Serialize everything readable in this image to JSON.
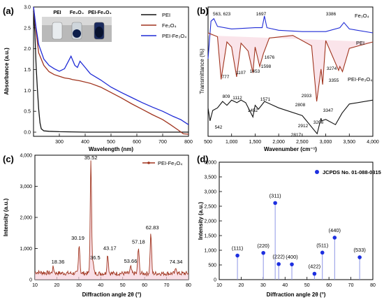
{
  "colors": {
    "pei": "#111111",
    "fe3o4": "#a0341e",
    "pei_fe3o4": "#1f2bd6",
    "fill_pink": "#f7d2dc",
    "stick": "#8e96e6",
    "marker": "#1d2fe0"
  },
  "chart_data": [
    {
      "panel": "(a)",
      "type": "line",
      "xlabel": "Wavelength (nm)",
      "ylabel": "Absorbance (a.u.)",
      "xlim": [
        200,
        800
      ],
      "ylim": [
        -0.1,
        3.0
      ],
      "xticks": [
        "300",
        "400",
        "500",
        "600",
        "700",
        "800"
      ],
      "yticks": [
        "0.0",
        "0.5",
        "1.0",
        "1.5",
        "2.0",
        "2.5",
        "3.0"
      ],
      "legend_position": "top-right",
      "inset_labels": [
        "PEI",
        "Fe₃O₄",
        "PEI-Fe₃O₄"
      ],
      "series": [
        {
          "name": "PEI",
          "color_key": "pei",
          "x": [
            200,
            205,
            210,
            215,
            220,
            225,
            230,
            240,
            260,
            300,
            400,
            600,
            800
          ],
          "y": [
            2.9,
            2.4,
            1.6,
            1.05,
            0.55,
            0.22,
            0.08,
            0.03,
            0.02,
            0.01,
            0.0,
            0.0,
            0.0
          ]
        },
        {
          "name": "Fe₃O₄",
          "color_key": "fe3o4",
          "x": [
            200,
            210,
            220,
            240,
            260,
            280,
            300,
            320,
            340,
            350,
            380,
            420,
            460,
            500,
            540,
            580,
            620,
            660,
            700,
            730,
            760,
            780,
            800
          ],
          "y": [
            3.0,
            2.4,
            1.9,
            1.6,
            1.45,
            1.38,
            1.34,
            1.3,
            1.28,
            1.26,
            1.23,
            1.17,
            1.08,
            0.95,
            0.82,
            0.68,
            0.55,
            0.42,
            0.3,
            0.18,
            0.05,
            -0.04,
            -0.05
          ]
        },
        {
          "name": "PEI-Fe₃O₄",
          "color_key": "pei_fe3o4",
          "x": [
            200,
            210,
            220,
            240,
            260,
            280,
            300,
            320,
            335,
            345,
            360,
            370,
            380,
            400,
            420,
            460,
            500,
            540,
            580,
            620,
            660,
            700,
            740,
            770,
            790,
            800
          ],
          "y": [
            3.0,
            2.5,
            2.1,
            1.75,
            1.6,
            1.52,
            1.46,
            1.52,
            1.7,
            1.82,
            1.6,
            1.55,
            1.7,
            1.55,
            1.4,
            1.25,
            1.08,
            0.95,
            0.83,
            0.71,
            0.6,
            0.5,
            0.38,
            0.3,
            0.22,
            0.18
          ]
        }
      ]
    },
    {
      "panel": "(b)",
      "type": "line",
      "xlabel": "Wavenumber (cm⁻¹)",
      "ylabel": "Transmittance (%)",
      "xlim": [
        500,
        4000
      ],
      "xticks": [
        "500",
        "1,000",
        "1,500",
        "2,000",
        "2,500",
        "3,000",
        "3,500",
        "4,000"
      ],
      "series": [
        {
          "name": "Fe₃O₄",
          "color_key": "pei_fe3o4",
          "x": [
            500,
            563,
            623,
            700,
            1000,
            1500,
            1650,
            1697,
            1750,
            2000,
            2500,
            3000,
            3300,
            3386,
            3500,
            4000
          ],
          "y": [
            6,
            8.9,
            9.1,
            8.5,
            8.3,
            8.4,
            8.4,
            9.3,
            8.4,
            8.2,
            8.1,
            8.1,
            8.4,
            8.8,
            8.3,
            8.0
          ]
        },
        {
          "name": "PEI",
          "color_key": "fe3o4",
          "x": [
            500,
            700,
            777,
            900,
            1000,
            1107,
            1200,
            1350,
            1453,
            1500,
            1598,
            1676,
            1800,
            2300,
            2700,
            2808,
            2900,
            2933,
            3000,
            3274,
            3300,
            3355,
            3500,
            4000
          ],
          "y": [
            8,
            7.7,
            4.4,
            7.3,
            6.9,
            4.6,
            7.2,
            6.6,
            4.9,
            6.9,
            5.4,
            6.4,
            7.6,
            7.8,
            7.0,
            2.7,
            5.2,
            4.0,
            7.4,
            5.1,
            5.4,
            5.0,
            6.8,
            7.3
          ]
        },
        {
          "name": "PEI-Fe₃O₄",
          "color_key": "pei",
          "x": [
            500,
            542,
            600,
            700,
            809,
            900,
            1000,
            1112,
            1200,
            1300,
            1452,
            1500,
            1571,
            1700,
            2000,
            2500,
            2817,
            2900,
            2912,
            3000,
            3206,
            3347,
            3500,
            4000
          ],
          "y": [
            2.2,
            1.2,
            2.0,
            2.2,
            2.7,
            2.4,
            2.8,
            2.6,
            2.8,
            2.6,
            1.5,
            2.4,
            2.1,
            2.7,
            2.2,
            1.6,
            0.2,
            1.4,
            1.2,
            1.3,
            0.9,
            1.8,
            2.5,
            2.8
          ]
        }
      ],
      "annotations": [
        "563, 623",
        "1697",
        "3386",
        "777",
        "1107",
        "1453",
        "1598",
        "1676",
        "2808",
        "2933",
        "3274",
        "3355",
        "542",
        "809",
        "1112",
        "1452",
        "1571",
        "2817",
        "2912",
        "3206",
        "3347"
      ]
    },
    {
      "panel": "(c)",
      "type": "line",
      "xlabel": "Diffraction angle 2θ (°)",
      "ylabel": "Intensity (a.u.)",
      "xlim": [
        10,
        80
      ],
      "ylim": [
        0,
        4000
      ],
      "xticks": [
        "10",
        "20",
        "30",
        "40",
        "50",
        "60",
        "70",
        "80"
      ],
      "yticks": [
        "0",
        "1,000",
        "2,000",
        "3,000",
        "4,000"
      ],
      "legend_position": "top-right",
      "series": [
        {
          "name": "PEI-Fe₃O₄",
          "color_key": "fe3o4",
          "peaks": [
            [
              18.36,
              380
            ],
            [
              30.19,
              1150
            ],
            [
              35.52,
              3780
            ],
            [
              36.5,
              520
            ],
            [
              43.17,
              820
            ],
            [
              53.66,
              400
            ],
            [
              57.18,
              1020
            ],
            [
              62.83,
              1480
            ],
            [
              74.34,
              380
            ]
          ],
          "baseline": 200
        }
      ],
      "annotations": [
        "35.52",
        "30.19",
        "43.17",
        "36.5",
        "18.36",
        "53.66",
        "57.18",
        "62.83",
        "74.34"
      ]
    },
    {
      "panel": "(d)",
      "type": "scatter",
      "xlabel": "Diffraction angle 2θ (°)",
      "ylabel": "Intensity (a.u.)",
      "xlim": [
        10,
        80
      ],
      "ylim": [
        0,
        4000
      ],
      "xticks": [
        "10",
        "20",
        "30",
        "40",
        "50",
        "60",
        "70",
        "80"
      ],
      "yticks": [
        "0",
        "500",
        "1,000",
        "1,500",
        "2,000",
        "2,500",
        "3,000",
        "3,500",
        "4,000"
      ],
      "legend_position": "top-right",
      "series": [
        {
          "name": "JCPDS No. 01-088-0315",
          "x": [
            18.3,
            30.1,
            35.5,
            37.1,
            43.1,
            53.4,
            57.0,
            62.6,
            74.0
          ],
          "y": [
            820,
            910,
            2610,
            530,
            520,
            200,
            920,
            1430,
            760
          ],
          "labels": [
            "(111)",
            "(220)",
            "(311)",
            "(222)",
            "(400)",
            "(422)",
            "(511)",
            "(440)",
            "(533)"
          ]
        }
      ]
    }
  ]
}
